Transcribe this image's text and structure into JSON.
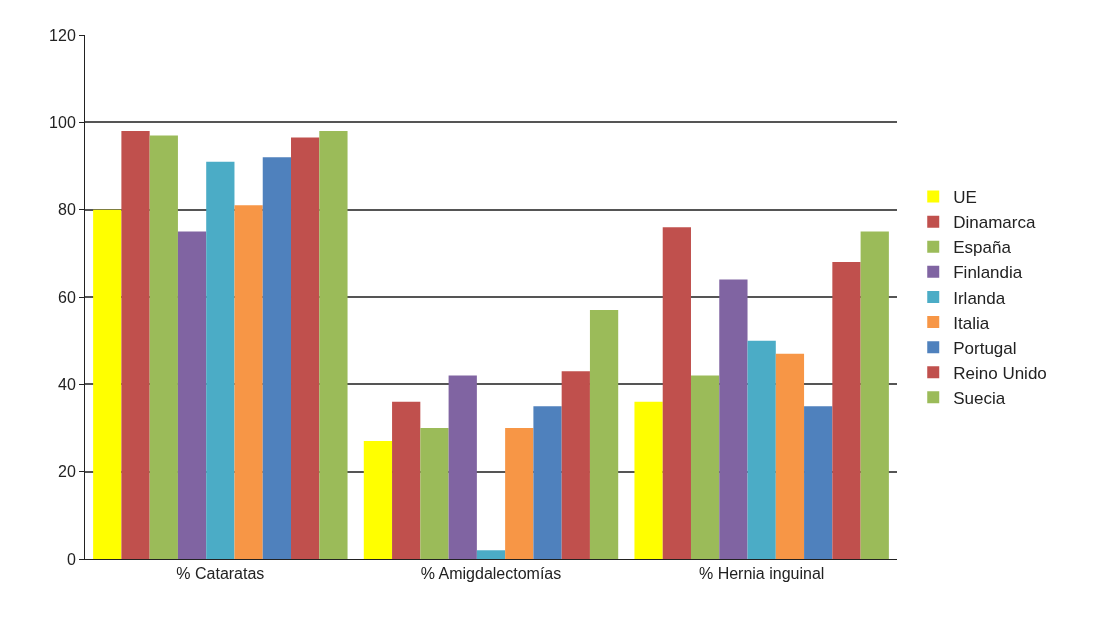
{
  "chart_data": {
    "type": "bar",
    "categories": [
      "% Cataratas",
      "% Amigdalectomías",
      "% Hernia inguinal"
    ],
    "series": [
      {
        "name": "UE",
        "color": "#ffff00",
        "values": [
          80,
          27,
          36
        ]
      },
      {
        "name": "Dinamarca",
        "color": "#c0504d",
        "values": [
          98,
          36,
          76
        ]
      },
      {
        "name": "España",
        "color": "#9bbb59",
        "values": [
          97,
          30,
          42
        ]
      },
      {
        "name": "Finlandia",
        "color": "#8064a2",
        "values": [
          75,
          42,
          64
        ]
      },
      {
        "name": "Irlanda",
        "color": "#4bacc6",
        "values": [
          91,
          2,
          50
        ]
      },
      {
        "name": "Italia",
        "color": "#f79646",
        "values": [
          81,
          30,
          47
        ]
      },
      {
        "name": "Portugal",
        "color": "#4f81bd",
        "values": [
          92,
          35,
          35
        ]
      },
      {
        "name": "Reino Unido",
        "color": "#c0504d",
        "values": [
          96.5,
          43,
          68
        ]
      },
      {
        "name": "Suecia",
        "color": "#9bbb59",
        "values": [
          98,
          57,
          75
        ]
      }
    ],
    "ylim": [
      0,
      120
    ],
    "yticks": [
      0,
      20,
      40,
      60,
      80,
      100,
      120
    ],
    "grid": "y",
    "legend": "right"
  }
}
